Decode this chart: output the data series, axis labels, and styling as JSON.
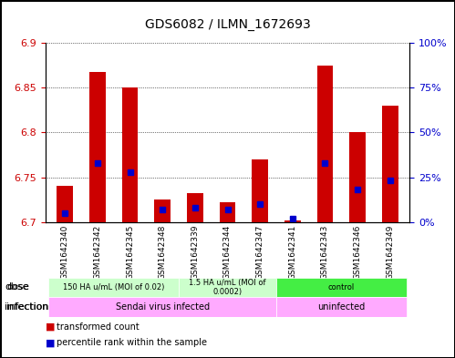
{
  "title": "GDS6082 / ILMN_1672693",
  "samples": [
    "GSM1642340",
    "GSM1642342",
    "GSM1642345",
    "GSM1642348",
    "GSM1642339",
    "GSM1642344",
    "GSM1642347",
    "GSM1642341",
    "GSM1642343",
    "GSM1642346",
    "GSM1642349"
  ],
  "red_values": [
    6.74,
    6.868,
    6.85,
    6.725,
    6.732,
    6.722,
    6.77,
    6.702,
    6.875,
    6.8,
    6.83
  ],
  "blue_values_pct": [
    5,
    33,
    28,
    7,
    8,
    7,
    10,
    2,
    33,
    18,
    23
  ],
  "ymin": 6.7,
  "ymax": 6.9,
  "yticks": [
    6.7,
    6.75,
    6.8,
    6.85,
    6.9
  ],
  "right_yticks": [
    0,
    25,
    50,
    75,
    100
  ],
  "dose_groups": [
    {
      "label": "150 HA u/mL (MOI of 0.02)",
      "start": 0,
      "end": 4,
      "color": "#ccffcc"
    },
    {
      "label": "1.5 HA u/mL (MOI of\n0.0002)",
      "start": 4,
      "end": 7,
      "color": "#ccffcc"
    },
    {
      "label": "control",
      "start": 7,
      "end": 11,
      "color": "#00dd00"
    }
  ],
  "infection_groups": [
    {
      "label": "Sendai virus infected",
      "start": 0,
      "end": 7,
      "color": "#ffaaff"
    },
    {
      "label": "uninfected",
      "start": 7,
      "end": 11,
      "color": "#ffaaff"
    }
  ],
  "bar_width": 0.5,
  "red_color": "#cc0000",
  "blue_color": "#0000cc",
  "base_value": 6.7
}
